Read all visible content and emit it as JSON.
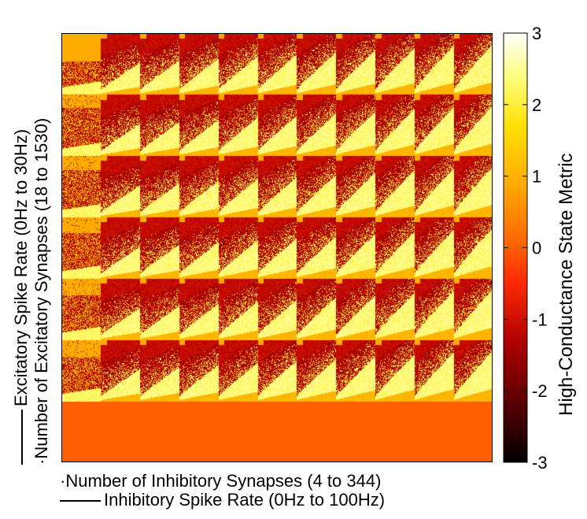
{
  "chart_data": {
    "type": "heatmap",
    "title": "",
    "x_axis": {
      "outer_label": "Inhibitory Spike Rate (0Hz to 100Hz)",
      "inner_label": "Number of Inhibitory Synapses (4 to 344)",
      "outer_blocks": 11
    },
    "y_axis": {
      "outer_label": "Excitatory Spike Rate (0Hz to 30Hz)",
      "inner_label": "Number of Excitatory Synapses (18 to 1530)",
      "outer_blocks": 7
    },
    "colorbar": {
      "label": "High-Conductance State Metric",
      "min": -3,
      "max": 3,
      "ticks": [
        "3",
        "2",
        "1",
        "0",
        "-1",
        "-2",
        "-3"
      ],
      "colormap": "hot",
      "colors": [
        "#000000",
        "#5a0000",
        "#b00000",
        "#ff2a00",
        "#ff6a00",
        "#ffb000",
        "#ffe000",
        "#ffff80",
        "#ffffff"
      ]
    },
    "pattern": {
      "bottom_row_value": 0,
      "background_top_value": 0.9,
      "low_region_value": -1.8,
      "bright_wedge_value": 2
    }
  }
}
